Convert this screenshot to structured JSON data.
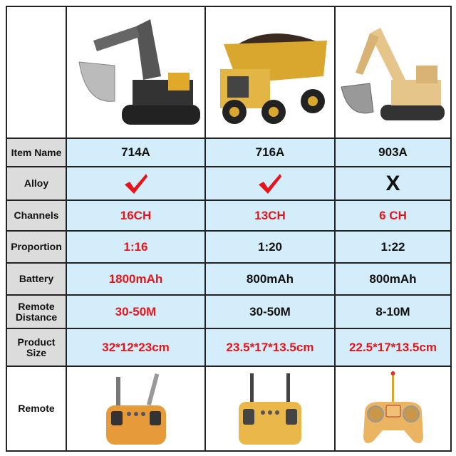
{
  "products": [
    {
      "image": "excavator-black-icon",
      "item_name": "714A",
      "alloy": "check-icon",
      "channels": "16CH",
      "proportion": "1:16",
      "battery": "1800mAh",
      "remote_distance": "30-50M",
      "product_size": "32*12*23cm",
      "remote": "remote-orange-icon"
    },
    {
      "image": "dump-truck-icon",
      "item_name": "716A",
      "alloy": "check-icon",
      "channels": "13CH",
      "proportion": "1:20",
      "battery": "800mAh",
      "remote_distance": "30-50M",
      "product_size": "23.5*17*13.5cm",
      "remote": "remote-yellow-icon"
    },
    {
      "image": "excavator-yellow-icon",
      "item_name": "903A",
      "alloy": "X",
      "channels": "6 CH",
      "proportion": "1:22",
      "battery": "800mAh",
      "remote_distance": "8-10M",
      "product_size": "22.5*17*13.5cm",
      "remote": "remote-rc-gamepad-icon"
    }
  ],
  "labels": {
    "item_name": "Item Name",
    "alloy": "Alloy",
    "channels": "Channels",
    "proportion": "Proportion",
    "battery": "Battery",
    "remote_distance_1": "Remote",
    "remote_distance_2": "Distance",
    "product_size_1": "Product",
    "product_size_2": "Size",
    "remote": "Remote"
  },
  "colors": {
    "highlight": "#e8141b",
    "cell_bg": "#d3edfa",
    "label_bg": "#dcdcdc"
  }
}
